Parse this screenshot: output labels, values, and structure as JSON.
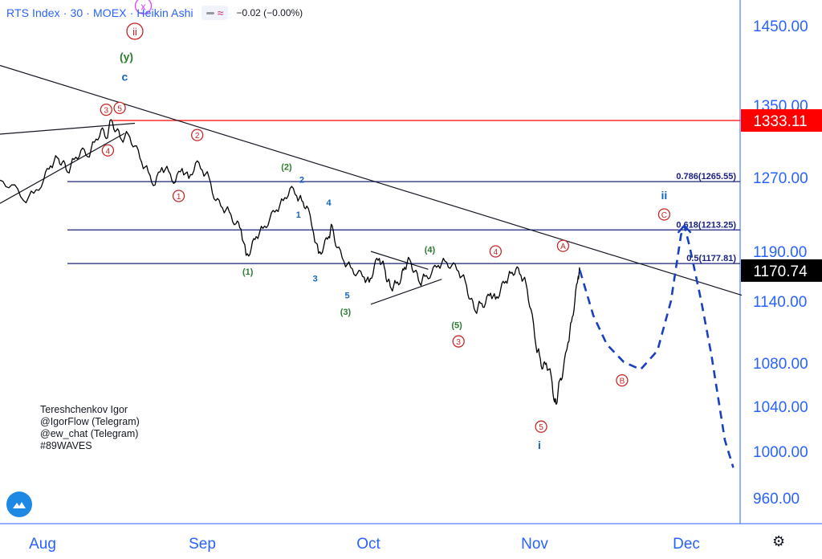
{
  "header": {
    "title": "RTS Index · 30 · MOEX · Heikin Ashi",
    "change": "−0.02 (−0.00%)"
  },
  "author": {
    "lines": [
      "Tereshchenkov Igor",
      "@IgorFlow (Telegram)",
      "@ew_chat (Telegram)",
      "#89WAVES"
    ]
  },
  "chart_data": {
    "type": "line",
    "title": "RTS Index · 30 · MOEX · Heikin Ashi",
    "x_axis": {
      "labels": [
        "Aug",
        "Sep",
        "Oct",
        "Nov",
        "Dec"
      ]
    },
    "y_axis": {
      "ticks": [
        1450,
        1350,
        1270,
        1190,
        1140,
        1080,
        1040,
        1000,
        960
      ],
      "tick_labels": [
        "1450.00",
        "1350.00",
        "1270.00",
        "1190.00",
        "1140.00",
        "1080.00",
        "1040.00",
        "1000.00",
        "960.00"
      ]
    },
    "price_labels": [
      {
        "value": 1333.11,
        "text": "1333.11",
        "color": "#ff0000"
      },
      {
        "value": 1170.74,
        "text": "1170.74",
        "color": "#000000"
      }
    ],
    "fib_levels": [
      {
        "ratio": 0.786,
        "value": 1265.55,
        "label": "0.786(1265.55)"
      },
      {
        "ratio": 0.618,
        "value": 1213.25,
        "label": "0.618(1213.25)"
      },
      {
        "ratio": 0.5,
        "value": 1177.81,
        "label": "0.5(1177.81)"
      }
    ],
    "price_series": [
      [
        0,
        1267
      ],
      [
        0.35,
        1262
      ],
      [
        0.7,
        1245
      ],
      [
        1.0,
        1253
      ],
      [
        1.3,
        1268
      ],
      [
        1.5,
        1283
      ],
      [
        1.7,
        1292
      ],
      [
        1.85,
        1287
      ],
      [
        2.0,
        1276
      ],
      [
        2.2,
        1290
      ],
      [
        2.4,
        1300
      ],
      [
        2.6,
        1293
      ],
      [
        2.8,
        1309
      ],
      [
        3.0,
        1323
      ],
      [
        3.15,
        1313
      ],
      [
        3.3,
        1334
      ],
      [
        3.45,
        1322
      ],
      [
        3.6,
        1312
      ],
      [
        3.8,
        1318
      ],
      [
        4.0,
        1305
      ],
      [
        4.2,
        1287
      ],
      [
        4.4,
        1276
      ],
      [
        4.6,
        1262
      ],
      [
        4.8,
        1281
      ],
      [
        5.0,
        1277
      ],
      [
        5.2,
        1265
      ],
      [
        5.4,
        1280
      ],
      [
        5.6,
        1269
      ],
      [
        5.8,
        1286
      ],
      [
        6.0,
        1278
      ],
      [
        6.2,
        1270
      ],
      [
        6.4,
        1245
      ],
      [
        6.6,
        1237
      ],
      [
        6.8,
        1233
      ],
      [
        7.0,
        1220
      ],
      [
        7.15,
        1214
      ],
      [
        7.3,
        1186
      ],
      [
        7.45,
        1193
      ],
      [
        7.6,
        1206
      ],
      [
        7.8,
        1215
      ],
      [
        8.0,
        1225
      ],
      [
        8.2,
        1235
      ],
      [
        8.4,
        1245
      ],
      [
        8.6,
        1258
      ],
      [
        8.8,
        1250
      ],
      [
        8.95,
        1245
      ],
      [
        9.1,
        1239
      ],
      [
        9.3,
        1210
      ],
      [
        9.45,
        1188
      ],
      [
        9.6,
        1195
      ],
      [
        9.75,
        1206
      ],
      [
        9.85,
        1218
      ],
      [
        10.0,
        1194
      ],
      [
        10.2,
        1180
      ],
      [
        10.4,
        1174
      ],
      [
        10.6,
        1168
      ],
      [
        10.8,
        1164
      ],
      [
        10.95,
        1159
      ],
      [
        11.1,
        1175
      ],
      [
        11.25,
        1183
      ],
      [
        11.4,
        1174
      ],
      [
        11.5,
        1160
      ],
      [
        11.6,
        1153
      ],
      [
        11.75,
        1158
      ],
      [
        11.9,
        1163
      ],
      [
        12.0,
        1174
      ],
      [
        12.15,
        1182
      ],
      [
        12.3,
        1170
      ],
      [
        12.45,
        1158
      ],
      [
        12.6,
        1165
      ],
      [
        12.8,
        1168
      ],
      [
        13.0,
        1176
      ],
      [
        13.2,
        1180
      ],
      [
        13.4,
        1176
      ],
      [
        13.6,
        1170
      ],
      [
        13.8,
        1160
      ],
      [
        13.95,
        1142
      ],
      [
        14.1,
        1130
      ],
      [
        14.25,
        1138
      ],
      [
        14.4,
        1138
      ],
      [
        14.55,
        1148
      ],
      [
        14.7,
        1142
      ],
      [
        14.85,
        1152
      ],
      [
        15.0,
        1160
      ],
      [
        15.15,
        1168
      ],
      [
        15.3,
        1172
      ],
      [
        15.45,
        1166
      ],
      [
        15.6,
        1158
      ],
      [
        15.75,
        1132
      ],
      [
        15.9,
        1096
      ],
      [
        16.0,
        1088
      ],
      [
        16.1,
        1075
      ],
      [
        16.2,
        1080
      ],
      [
        16.35,
        1068
      ],
      [
        16.45,
        1044
      ],
      [
        16.5,
        1042
      ],
      [
        16.6,
        1064
      ],
      [
        16.7,
        1072
      ],
      [
        16.85,
        1100
      ],
      [
        16.95,
        1120
      ],
      [
        17.05,
        1140
      ],
      [
        17.15,
        1165
      ],
      [
        17.2,
        1171
      ]
    ],
    "forecast_series": [
      [
        17.2,
        1171
      ],
      [
        17.6,
        1126
      ],
      [
        18.0,
        1098
      ],
      [
        18.5,
        1081
      ],
      [
        19.0,
        1074
      ],
      [
        19.5,
        1092
      ],
      [
        19.9,
        1140
      ],
      [
        20.2,
        1208
      ],
      [
        20.3,
        1218
      ],
      [
        20.45,
        1196
      ],
      [
        20.8,
        1140
      ],
      [
        21.1,
        1088
      ],
      [
        21.5,
        1010
      ],
      [
        21.75,
        986
      ]
    ],
    "trendlines": [
      {
        "from": [
          0,
          1400
        ],
        "to": [
          22.0,
          1146
        ]
      },
      {
        "from": [
          0,
          1318
        ],
        "to": [
          4.0,
          1330
        ]
      },
      {
        "from": [
          0,
          1242
        ],
        "to": [
          3.7,
          1319
        ]
      },
      {
        "from": [
          11.0,
          1190
        ],
        "to": [
          12.7,
          1172
        ]
      },
      {
        "from": [
          11.0,
          1137
        ],
        "to": [
          13.1,
          1162
        ]
      }
    ],
    "wave_labels": [
      {
        "text": "x",
        "x": 4.25,
        "y": 1475,
        "style": "circle",
        "color": "#e040fb"
      },
      {
        "text": "ii",
        "x": 4.0,
        "y": 1443,
        "style": "circle",
        "color": "#c62828"
      },
      {
        "text": "(y)",
        "x": 3.75,
        "y": 1410,
        "style": "plain",
        "color": "#2e7d32"
      },
      {
        "text": "c",
        "x": 3.7,
        "y": 1385,
        "style": "plain",
        "color": "#1565c0"
      },
      {
        "text": "3",
        "x": 3.15,
        "y": 1345,
        "style": "circle",
        "color": "#c62828"
      },
      {
        "text": "5",
        "x": 3.55,
        "y": 1347,
        "style": "circle",
        "color": "#c62828"
      },
      {
        "text": "4",
        "x": 3.2,
        "y": 1300,
        "style": "circle",
        "color": "#c62828"
      },
      {
        "text": "2",
        "x": 5.85,
        "y": 1317,
        "style": "circle",
        "color": "#c62828"
      },
      {
        "text": "1",
        "x": 5.3,
        "y": 1250,
        "style": "circle",
        "color": "#c62828"
      },
      {
        "text": "(2)",
        "x": 8.5,
        "y": 1282,
        "style": "plain",
        "color": "#2e7d32"
      },
      {
        "text": "2",
        "x": 8.95,
        "y": 1268,
        "style": "plain",
        "color": "#1565c0"
      },
      {
        "text": "1",
        "x": 8.85,
        "y": 1230,
        "style": "plain",
        "color": "#1565c0"
      },
      {
        "text": "4",
        "x": 9.75,
        "y": 1243,
        "style": "plain",
        "color": "#1565c0"
      },
      {
        "text": "(1)",
        "x": 7.35,
        "y": 1170,
        "style": "plain",
        "color": "#2e7d32"
      },
      {
        "text": "3",
        "x": 9.35,
        "y": 1163,
        "style": "plain",
        "color": "#1565c0"
      },
      {
        "text": "5",
        "x": 10.3,
        "y": 1146,
        "style": "plain",
        "color": "#1565c0"
      },
      {
        "text": "(3)",
        "x": 10.25,
        "y": 1130,
        "style": "plain",
        "color": "#2e7d32"
      },
      {
        "text": "(4)",
        "x": 12.75,
        "y": 1192,
        "style": "plain",
        "color": "#2e7d32"
      },
      {
        "text": "4",
        "x": 14.7,
        "y": 1190,
        "style": "circle",
        "color": "#c62828"
      },
      {
        "text": "(5)",
        "x": 13.55,
        "y": 1117,
        "style": "plain",
        "color": "#2e7d32"
      },
      {
        "text": "3",
        "x": 13.6,
        "y": 1101,
        "style": "circle",
        "color": "#c62828"
      },
      {
        "text": "A",
        "x": 16.7,
        "y": 1196,
        "style": "circle",
        "color": "#c62828"
      },
      {
        "text": "5",
        "x": 16.05,
        "y": 1022,
        "style": "circle",
        "color": "#c62828"
      },
      {
        "text": "i",
        "x": 16.0,
        "y": 1005,
        "style": "plain",
        "color": "#1565c0"
      },
      {
        "text": "B",
        "x": 18.45,
        "y": 1064,
        "style": "circle",
        "color": "#c62828"
      },
      {
        "text": "ii",
        "x": 19.7,
        "y": 1250,
        "style": "plain",
        "color": "#1565c0"
      },
      {
        "text": "C",
        "x": 19.7,
        "y": 1230,
        "style": "circle",
        "color": "#c62828"
      }
    ]
  },
  "colors": {
    "accent": "#2962ff",
    "fib_line": "#1a237e",
    "resistance": "#ff0000",
    "trendline": "#131722",
    "forecast": "#1a3fbf",
    "wave_red": "#c62828",
    "wave_green": "#2e7d32",
    "wave_blue": "#1565c0"
  },
  "icons": [
    "tradingview-logo-icon",
    "settings-gear-icon"
  ]
}
